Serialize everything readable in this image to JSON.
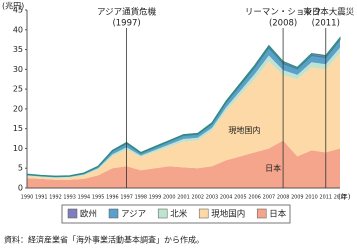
{
  "chart_data": {
    "type": "area",
    "y_label": "(兆円)",
    "x_label": "(年)",
    "categories": [
      "1990",
      "1991",
      "1992",
      "1993",
      "1994",
      "1995",
      "1996",
      "1997",
      "1998",
      "1999",
      "2000",
      "2001",
      "2002",
      "2003",
      "2004",
      "2005",
      "2006",
      "2007",
      "2008",
      "2009",
      "2010",
      "2011",
      "2012"
    ],
    "series": [
      {
        "name": "日本",
        "color": "#f4a58c",
        "values": [
          2.5,
          2.3,
          2.1,
          2.1,
          2.3,
          3.2,
          5,
          5.5,
          4.5,
          5,
          5.5,
          5.2,
          5,
          5.5,
          7,
          8,
          9,
          10,
          12,
          8,
          9.5,
          9,
          10
        ]
      },
      {
        "name": "現地国内",
        "color": "#fcd9a6",
        "values": [
          0.5,
          0.4,
          0.4,
          0.5,
          0.9,
          1.5,
          3.0,
          4.2,
          3.3,
          4.1,
          4.9,
          6.5,
          7.0,
          9.0,
          12.5,
          15.5,
          18.5,
          22,
          16.5,
          19.5,
          21,
          21,
          24
        ]
      },
      {
        "name": "北米",
        "color": "#bfe3cf",
        "values": [
          0.2,
          0.2,
          0.2,
          0.2,
          0.2,
          0.3,
          0.5,
          0.6,
          0.4,
          0.5,
          0.6,
          0.7,
          0.7,
          0.7,
          0.9,
          1.1,
          1.3,
          1.5,
          1.3,
          1.1,
          1.3,
          1.3,
          1.5
        ]
      },
      {
        "name": "アジア",
        "color": "#5b9fcb",
        "values": [
          0.2,
          0.2,
          0.2,
          0.2,
          0.3,
          0.4,
          0.8,
          1.0,
          0.6,
          0.7,
          0.8,
          0.9,
          0.9,
          1.0,
          1.3,
          1.5,
          1.7,
          2.0,
          1.7,
          1.5,
          1.7,
          1.7,
          2.0
        ]
      },
      {
        "name": "欧州",
        "color": "#7f7fc0",
        "values": [
          0.1,
          0.1,
          0.1,
          0.1,
          0.1,
          0.1,
          0.2,
          0.2,
          0.2,
          0.2,
          0.2,
          0.2,
          0.2,
          0.3,
          0.3,
          0.4,
          0.5,
          0.5,
          0.5,
          0.4,
          0.5,
          0.5,
          0.5
        ]
      }
    ],
    "legend_order": [
      4,
      3,
      2,
      1,
      0
    ],
    "annotations": [
      {
        "text": "アジア通貨危機",
        "year": {
          "value": 1997,
          "label": "(1997)"
        }
      },
      {
        "text": "リーマン・ショック",
        "year": {
          "value": 2008,
          "label": "(2008)"
        }
      },
      {
        "text": "東日本大震災",
        "year": {
          "value": 2011,
          "label": "(2011)"
        }
      }
    ],
    "ylim": [
      0,
      45
    ],
    "yticks": [
      0,
      5,
      10,
      15,
      20,
      25,
      30,
      35,
      40,
      45
    ],
    "grid": false,
    "source": "資料：経済産業省「海外事業活動基本調査」から作成。"
  }
}
